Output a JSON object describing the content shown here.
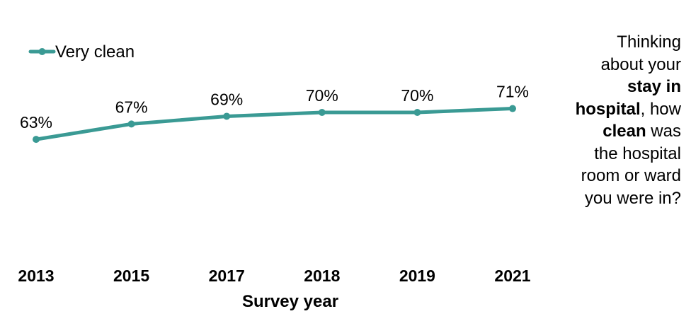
{
  "chart_data": {
    "type": "line",
    "categories": [
      "2013",
      "2015",
      "2017",
      "2018",
      "2019",
      "2021"
    ],
    "series": [
      {
        "name": "Very clean",
        "values": [
          63,
          67,
          69,
          70,
          70,
          71
        ],
        "data_labels": [
          "63%",
          "67%",
          "69%",
          "70%",
          "70%",
          "71%"
        ],
        "color": "#3a9a94"
      }
    ],
    "xlabel": "Survey year",
    "ylabel": "",
    "ylim": [
      0,
      100
    ],
    "grid": false,
    "legend_placement": "top-left"
  },
  "side_question": {
    "part1": "Thinking about your ",
    "bold1": "stay in hospital",
    "part2": ", how ",
    "bold2": "clean",
    "part3": " was the hospital room or ward you were in?"
  }
}
